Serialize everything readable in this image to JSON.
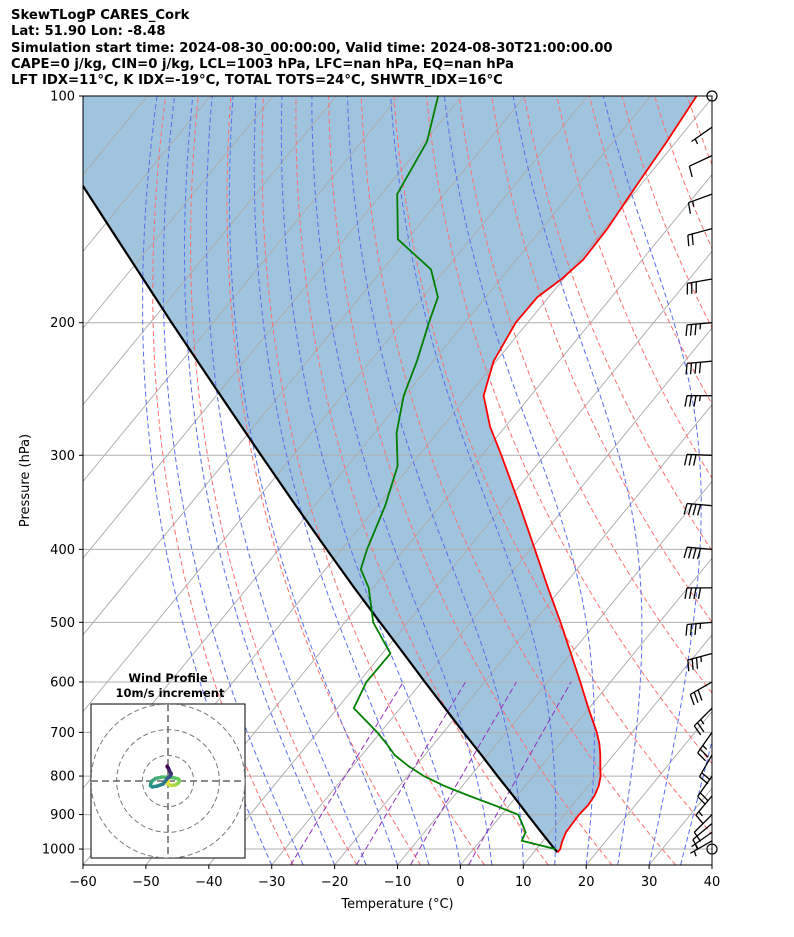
{
  "header": {
    "line1": "SkewTLogP CARES_Cork",
    "line2": "Lat: 51.90   Lon: -8.48",
    "line3": "Simulation start time: 2024-08-30_00:00:00, Valid time: 2024-08-30T21:00:00.00",
    "line4": "CAPE=0 j/kg, CIN=0 j/kg, LCL=1003 hPa, LFC=nan hPa, EQ=nan hPa",
    "line5": "LFT IDX=11°C, K IDX=-19°C, TOTAL TOTS=24°C, SHWTR_IDX=16°C"
  },
  "chart_data": {
    "type": "line",
    "xlabel": "Temperature (°C)",
    "ylabel": "Pressure (hPa)",
    "xlim": [
      -60,
      40
    ],
    "ylim": [
      1050,
      100
    ],
    "y_scale": "log",
    "skew": true,
    "grid": true,
    "x_ticks": [
      "−60",
      "−50",
      "−40",
      "−30",
      "−20",
      "−10",
      "0",
      "10",
      "20",
      "30",
      "40"
    ],
    "y_ticks": [
      "100",
      "200",
      "300",
      "400",
      "500",
      "600",
      "700",
      "800",
      "900",
      "1000"
    ],
    "colors": {
      "temperature": "#ff0000",
      "dewpoint": "#008000",
      "parcel": "#000000",
      "shade": "#a1c4de",
      "dry_adiabats": "#ff6f6f",
      "moist_adiabats": "#5a6cf0",
      "mixing_ratio": "#9030c0"
    },
    "series": [
      {
        "key": "temperature",
        "pressure": [
          1010,
          1000,
          980,
          950,
          925,
          900,
          875,
          850,
          825,
          800,
          775,
          750,
          725,
          700,
          650,
          600,
          550,
          500,
          450,
          400,
          350,
          300,
          275,
          250,
          225,
          200,
          185,
          175,
          165,
          150,
          135,
          115,
          100
        ],
        "temperature": [
          13.8,
          13.8,
          13.2,
          12.5,
          12.4,
          12.3,
          12.5,
          12.3,
          11.7,
          10.7,
          9.3,
          7.9,
          6.3,
          4.4,
          -0.1,
          -4.8,
          -10.0,
          -15.7,
          -22.2,
          -29.3,
          -37.4,
          -46.9,
          -52.4,
          -57.5,
          -60.4,
          -61.9,
          -61.8,
          -60.3,
          -59.4,
          -59.6,
          -60.4,
          -61.5,
          -62.7
        ]
      },
      {
        "key": "dewpoint",
        "pressure": [
          1000,
          975,
          950,
          925,
          900,
          875,
          850,
          825,
          800,
          775,
          750,
          725,
          700,
          650,
          600,
          550,
          500,
          450,
          425,
          400,
          350,
          310,
          280,
          250,
          225,
          200,
          185,
          170,
          155,
          135,
          115,
          100
        ],
        "temperature": [
          13.0,
          6.6,
          6.1,
          4.4,
          2.6,
          -2.3,
          -7.6,
          -12.8,
          -17.4,
          -21.3,
          -24.8,
          -27.5,
          -30.5,
          -37.4,
          -38.8,
          -38.7,
          -45.5,
          -50.7,
          -54.4,
          -56.0,
          -58.8,
          -62.0,
          -66.5,
          -70.2,
          -72.6,
          -75.7,
          -77.6,
          -82.3,
          -91.5,
          -97.5,
          -99.6,
          -103.8
        ]
      },
      {
        "key": "parcel",
        "pressure": [
          1010,
          1000,
          950,
          900,
          850,
          800,
          750,
          700,
          650,
          600,
          550,
          500,
          450,
          400,
          350,
          300,
          250,
          200,
          150,
          100
        ],
        "temperature": [
          13.8,
          12.9,
          8.6,
          4.1,
          -0.6,
          -5.7,
          -11.0,
          -16.8,
          -22.9,
          -29.5,
          -36.6,
          -44.4,
          -53.0,
          -62.4,
          -73.0,
          -85.1,
          -99.3,
          -116.6,
          -138.6,
          -169.5
        ]
      }
    ],
    "wind_barbs": {
      "pressure": [
        1000,
        975,
        950,
        925,
        900,
        850,
        800,
        750,
        700,
        650,
        600,
        550,
        500,
        450,
        400,
        350,
        300,
        250,
        225,
        200,
        175,
        150,
        135,
        120,
        110,
        100
      ],
      "speed_kt": [
        0,
        4,
        6,
        11,
        12,
        15,
        18,
        22,
        24,
        27,
        30,
        33,
        36,
        38,
        40,
        38,
        30,
        35,
        38,
        33,
        29,
        22,
        14,
        9,
        5,
        0
      ],
      "direction_deg": [
        0,
        240,
        235,
        230,
        225,
        220,
        215,
        210,
        215,
        225,
        240,
        255,
        265,
        270,
        275,
        275,
        272,
        270,
        265,
        265,
        260,
        255,
        250,
        245,
        235,
        0
      ]
    },
    "hodograph": {
      "title": "Wind Profile",
      "subtitle": "10m/s increment",
      "u_ms": [
        0.0,
        -0.2,
        0.4,
        1.5,
        3.0,
        4.0,
        4.5,
        4.0,
        2.5,
        0.0,
        -2.5,
        -4.8,
        -6.2,
        -6.7,
        -6.8,
        -6.1,
        -4.2,
        -2.0,
        -1.0,
        -0.5,
        0.0,
        0.5,
        0.9,
        1.2,
        1.2,
        0.8,
        0.5,
        0.2,
        0.0,
        -0.3,
        -0.3
      ],
      "v_ms": [
        0.0,
        -1.0,
        -1.5,
        -1.7,
        -1.5,
        -0.8,
        0.0,
        0.8,
        1.2,
        1.5,
        1.5,
        1.0,
        0.0,
        -1.0,
        -1.8,
        -2.3,
        -2.0,
        -1.2,
        0.0,
        0.7,
        1.2,
        1.5,
        2.0,
        2.5,
        3.0,
        3.5,
        4.2,
        4.8,
        5.2,
        5.6,
        5.8
      ]
    }
  }
}
